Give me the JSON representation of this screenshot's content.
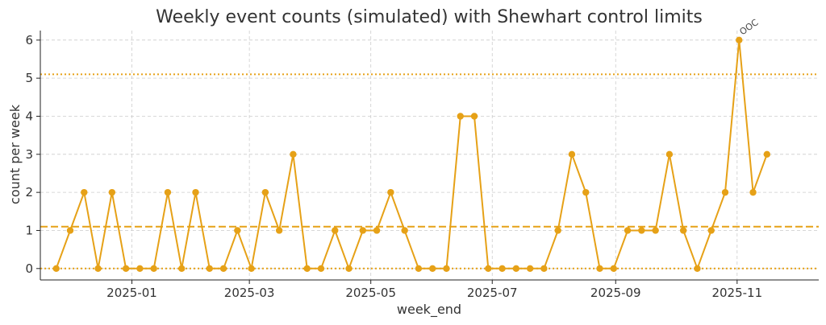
{
  "chart_data": {
    "type": "line",
    "title": "Weekly event counts (simulated) with Shewhart control limits",
    "xlabel": "week_end",
    "ylabel": "count per week",
    "x_ticks": [
      "2025-01",
      "2025-03",
      "2025-05",
      "2025-07",
      "2025-09",
      "2025-11"
    ],
    "x_tick_dates": [
      "2025-01-01",
      "2025-03-01",
      "2025-05-01",
      "2025-07-01",
      "2025-09-01",
      "2025-11-01"
    ],
    "y_ticks": [
      0,
      1,
      2,
      3,
      4,
      5,
      6
    ],
    "xlim": [
      "2024-11-16",
      "2025-12-12"
    ],
    "ylim": [
      -0.3,
      6.25
    ],
    "grid": true,
    "series": [
      {
        "x": [
          "2024-11-24",
          "2024-12-01",
          "2024-12-08",
          "2024-12-15",
          "2024-12-22",
          "2024-12-29",
          "2025-01-05",
          "2025-01-12",
          "2025-01-19",
          "2025-01-26",
          "2025-02-02",
          "2025-02-09",
          "2025-02-16",
          "2025-02-23",
          "2025-03-02",
          "2025-03-09",
          "2025-03-16",
          "2025-03-23",
          "2025-03-30",
          "2025-04-06",
          "2025-04-13",
          "2025-04-20",
          "2025-04-27",
          "2025-05-04",
          "2025-05-11",
          "2025-05-18",
          "2025-05-25",
          "2025-06-01",
          "2025-06-08",
          "2025-06-15",
          "2025-06-22",
          "2025-06-29",
          "2025-07-06",
          "2025-07-13",
          "2025-07-20",
          "2025-07-27",
          "2025-08-03",
          "2025-08-10",
          "2025-08-17",
          "2025-08-24",
          "2025-08-31",
          "2025-09-07",
          "2025-09-14",
          "2025-09-21",
          "2025-09-28",
          "2025-10-05",
          "2025-10-12",
          "2025-10-19",
          "2025-10-26",
          "2025-11-02",
          "2025-11-09",
          "2025-11-16"
        ],
        "values": [
          0,
          1,
          2,
          0,
          2,
          0,
          0,
          0,
          2,
          0,
          2,
          0,
          0,
          1,
          0,
          2,
          1,
          3,
          0,
          0,
          1,
          0,
          1,
          1,
          2,
          1,
          0,
          0,
          0,
          4,
          4,
          0,
          0,
          0,
          0,
          0,
          1,
          3,
          2,
          0,
          0,
          1,
          1,
          1,
          3,
          1,
          0,
          1,
          2,
          6,
          2,
          3
        ],
        "color": "#E6A117"
      }
    ],
    "reference_lines": [
      {
        "value": 5.1,
        "style": "dotted",
        "color": "#E6A117"
      },
      {
        "value": 1.1,
        "style": "dashed",
        "color": "#E6A117"
      },
      {
        "value": 0,
        "style": "dotted",
        "color": "#E6A117"
      }
    ],
    "annotations": [
      {
        "text": "OOC",
        "x": "2025-11-02",
        "y": 6
      }
    ]
  }
}
